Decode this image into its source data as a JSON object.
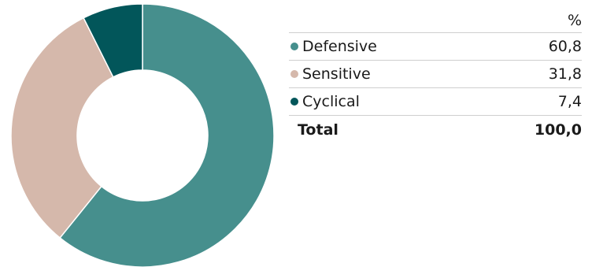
{
  "chart_data": {
    "type": "pie",
    "donut": true,
    "unit": "%",
    "slices": [
      {
        "label": "Defensive",
        "value": 60.8,
        "display": "60,8",
        "color": "#468f8d"
      },
      {
        "label": "Sensitive",
        "value": 31.8,
        "display": "31,8",
        "color": "#d5b8ab"
      },
      {
        "label": "Cyclical",
        "value": 7.4,
        "display": "7,4",
        "color": "#02565a"
      }
    ],
    "total": {
      "label": "Total",
      "display": "100,0"
    }
  }
}
